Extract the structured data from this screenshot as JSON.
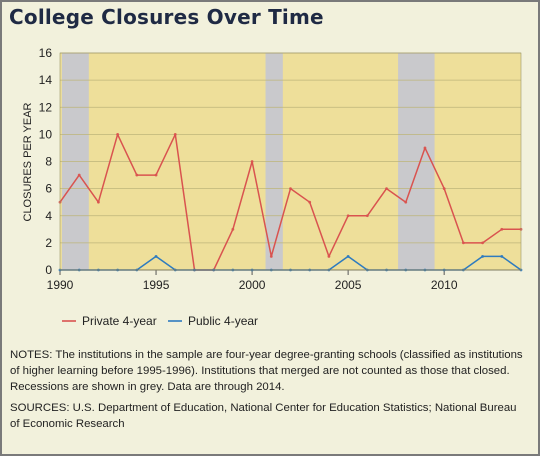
{
  "chart_data": {
    "type": "line",
    "title": "College Closures Over Time",
    "xlabel": "",
    "ylabel": "CLOSURES PER YEAR",
    "xlim": [
      1990,
      2014
    ],
    "ylim": [
      0,
      16
    ],
    "yticks": [
      0,
      2,
      4,
      6,
      8,
      10,
      12,
      14,
      16
    ],
    "xticks": [
      1990,
      1995,
      2000,
      2005,
      2010
    ],
    "grid": true,
    "legend_position": "bottom",
    "recessions": [
      [
        1990.1,
        1991.5
      ],
      [
        2000.7,
        2001.6
      ],
      [
        2007.6,
        2009.5
      ]
    ],
    "series": [
      {
        "name": "Private 4-year",
        "color": "#d9534f",
        "x": [
          1990,
          1991,
          1992,
          1993,
          1994,
          1995,
          1996,
          1997,
          1998,
          1999,
          2000,
          2001,
          2002,
          2003,
          2004,
          2005,
          2006,
          2007,
          2008,
          2009,
          2010,
          2011,
          2012,
          2013,
          2014
        ],
        "values": [
          5,
          7,
          5,
          10,
          7,
          7,
          10,
          0,
          0,
          3,
          8,
          1,
          6,
          5,
          1,
          4,
          4,
          6,
          5,
          9,
          6,
          2,
          2,
          3,
          3
        ]
      },
      {
        "name": "Public 4-year",
        "color": "#2e7bbf",
        "x": [
          1990,
          1991,
          1992,
          1993,
          1994,
          1995,
          1996,
          1997,
          1998,
          1999,
          2000,
          2001,
          2002,
          2003,
          2004,
          2005,
          2006,
          2007,
          2008,
          2009,
          2010,
          2011,
          2012,
          2013,
          2014
        ],
        "values": [
          0,
          0,
          0,
          0,
          0,
          1,
          0,
          0,
          0,
          0,
          0,
          0,
          0,
          0,
          0,
          1,
          0,
          0,
          0,
          0,
          0,
          0,
          1,
          1,
          0
        ]
      }
    ],
    "colors": {
      "plot_background": "#eedf9a",
      "recession": "#c9c9cc",
      "grid": "#bdb57a",
      "frame": "#7a7a7a"
    }
  },
  "notes": {
    "label": "NOTES:",
    "text": " The institutions in the sample are four-year degree-granting schools (classified as institutions of higher learning before 1995-1996). Institutions that merged are not counted as those that closed. Recessions are shown in grey. Data are through 2014."
  },
  "sources": {
    "label": "SOURCES:",
    "text": " U.S. Department of Education, National Center for Education Statistics; National Bureau of Economic Research"
  }
}
